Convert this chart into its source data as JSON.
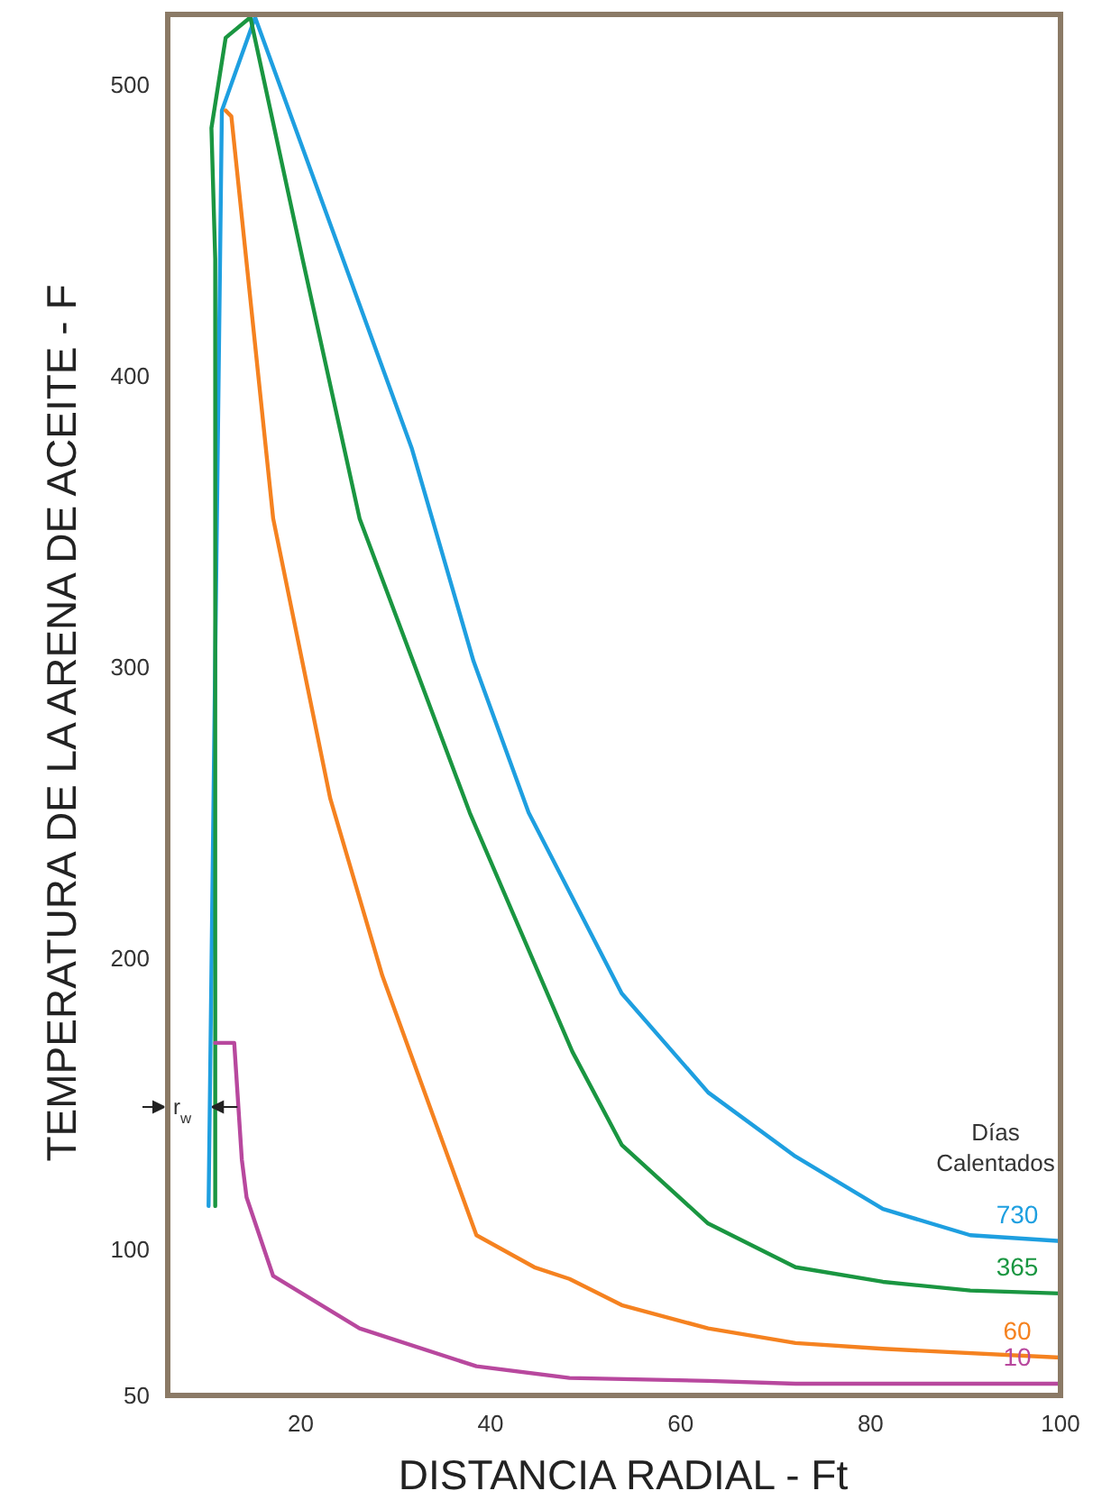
{
  "chart_data": {
    "type": "line",
    "xlabel": "DISTANCIA RADIAL - Ft",
    "ylabel": "TEMPERATURA DE LA ARENA DE ACEITE - F",
    "legend_title": "Días Calentados",
    "xlim": [
      6,
      100
    ],
    "ylim": [
      50,
      524
    ],
    "xticks": [
      20,
      40,
      60,
      80,
      100
    ],
    "yticks": [
      50,
      100,
      200,
      300,
      400,
      500
    ],
    "grid": false,
    "marker": "none",
    "line_style": "solid",
    "annotations": [
      "r$_{w}$"
    ],
    "series": [
      {
        "name": "730",
        "color": "#1e9fe0",
        "x": [
          10.3,
          11.7,
          15.2,
          31.7,
          38.2,
          44,
          53.8,
          62.9,
          72.1,
          81.3,
          90.5,
          100
        ],
        "values": [
          115,
          491,
          523,
          375,
          302,
          250,
          188,
          154,
          132,
          114,
          105,
          103
        ]
      },
      {
        "name": "365",
        "color": "#1a9641",
        "x": [
          11,
          11,
          10.6,
          12.1,
          14.7,
          20.2,
          26.2,
          37.8,
          48.6,
          53.8,
          62.9,
          72.1,
          81.3,
          90.5,
          100
        ],
        "values": [
          115,
          440,
          485,
          516,
          523,
          440,
          351,
          250,
          168,
          136,
          109,
          94,
          89,
          86,
          85
        ]
      },
      {
        "name": "60",
        "color": "#f58220",
        "x": [
          12.1,
          12.7,
          17.1,
          23.1,
          28.6,
          38.5,
          44.6,
          48.3,
          53.8,
          62.9,
          72.1,
          81.3,
          100
        ],
        "values": [
          491,
          489,
          351,
          255,
          194,
          105,
          94,
          90,
          81,
          73,
          68,
          66,
          63
        ]
      },
      {
        "name": "10",
        "color": "#b8489e",
        "x": [
          11,
          13,
          13.8,
          14.3,
          17.1,
          26.2,
          38.5,
          48.3,
          62.9,
          72.1,
          100
        ],
        "values": [
          171,
          171,
          131,
          118,
          91,
          73,
          60,
          56,
          55,
          54,
          54
        ]
      }
    ]
  }
}
